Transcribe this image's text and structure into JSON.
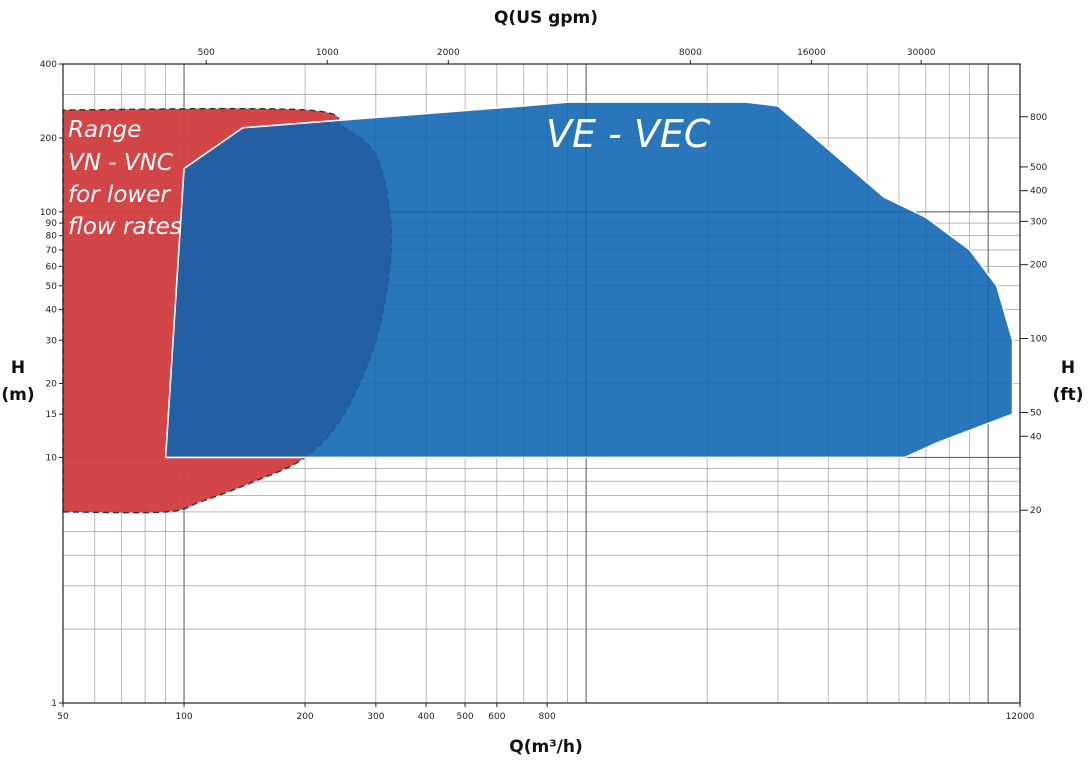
{
  "chart_data": {
    "type": "area",
    "title_top": "Q(US gpm)",
    "xlabel": "Q(m³/h)",
    "ylabel_left": [
      "H",
      "(m)"
    ],
    "ylabel_right": [
      "H",
      "(ft)"
    ],
    "x_scale": "log",
    "y_scale": "log",
    "xlim": [
      50,
      12000
    ],
    "ylim": [
      1,
      400
    ],
    "x_ticks": [
      50,
      100,
      200,
      300,
      400,
      500,
      600,
      800,
      12000
    ],
    "x_tick_labels": [
      "50",
      "100",
      "200",
      "300",
      "400",
      "500",
      "600",
      "800",
      "12000"
    ],
    "top_ticks_gpm": [
      500,
      1000,
      2000,
      8000,
      16000,
      30000
    ],
    "top_tick_labels": [
      "500",
      "1000",
      "2000",
      "8000",
      "16000",
      "30000"
    ],
    "y_ticks": [
      1,
      10,
      15,
      20,
      30,
      40,
      50,
      60,
      70,
      80,
      90,
      100,
      200,
      400
    ],
    "y_tick_labels": [
      "1",
      "10",
      "15",
      "20",
      "30",
      "40",
      "50",
      "60",
      "70",
      "80",
      "90",
      "100",
      "200",
      "400"
    ],
    "right_ticks_ft": [
      20,
      40,
      50,
      100,
      200,
      300,
      400,
      500,
      800
    ],
    "right_tick_labels": [
      "20",
      "40",
      "50",
      "100",
      "200",
      "300",
      "400",
      "500",
      "800"
    ],
    "grid": true,
    "series": [
      {
        "name": "Range VN - VNC for lower flow rates",
        "label_lines": [
          "Range",
          "VN - VNC",
          "for lower",
          "flow rates"
        ],
        "color": "#d13c3e",
        "opacity": 0.95,
        "dashed_outline": true,
        "smooth": true,
        "points": [
          [
            50,
            6
          ],
          [
            90,
            6
          ],
          [
            110,
            6.6
          ],
          [
            150,
            8
          ],
          [
            200,
            10
          ],
          [
            250,
            15
          ],
          [
            300,
            30
          ],
          [
            325,
            60
          ],
          [
            325,
            100
          ],
          [
            300,
            170
          ],
          [
            250,
            220
          ],
          [
            200,
            260
          ],
          [
            50,
            260
          ]
        ]
      },
      {
        "name": "VE - VEC",
        "label_lines": [
          "VE - VEC"
        ],
        "color": "#0b63b0",
        "opacity": 0.88,
        "dashed_outline": false,
        "smooth": false,
        "points": [
          [
            90,
            10
          ],
          [
            6200,
            10
          ],
          [
            7500,
            11.5
          ],
          [
            11500,
            15
          ],
          [
            11500,
            30
          ],
          [
            10500,
            50
          ],
          [
            9000,
            70
          ],
          [
            7000,
            95
          ],
          [
            5500,
            115
          ],
          [
            3000,
            270
          ],
          [
            2500,
            280
          ],
          [
            900,
            280
          ],
          [
            700,
            270
          ],
          [
            140,
            220
          ],
          [
            100,
            150
          ]
        ]
      }
    ]
  }
}
